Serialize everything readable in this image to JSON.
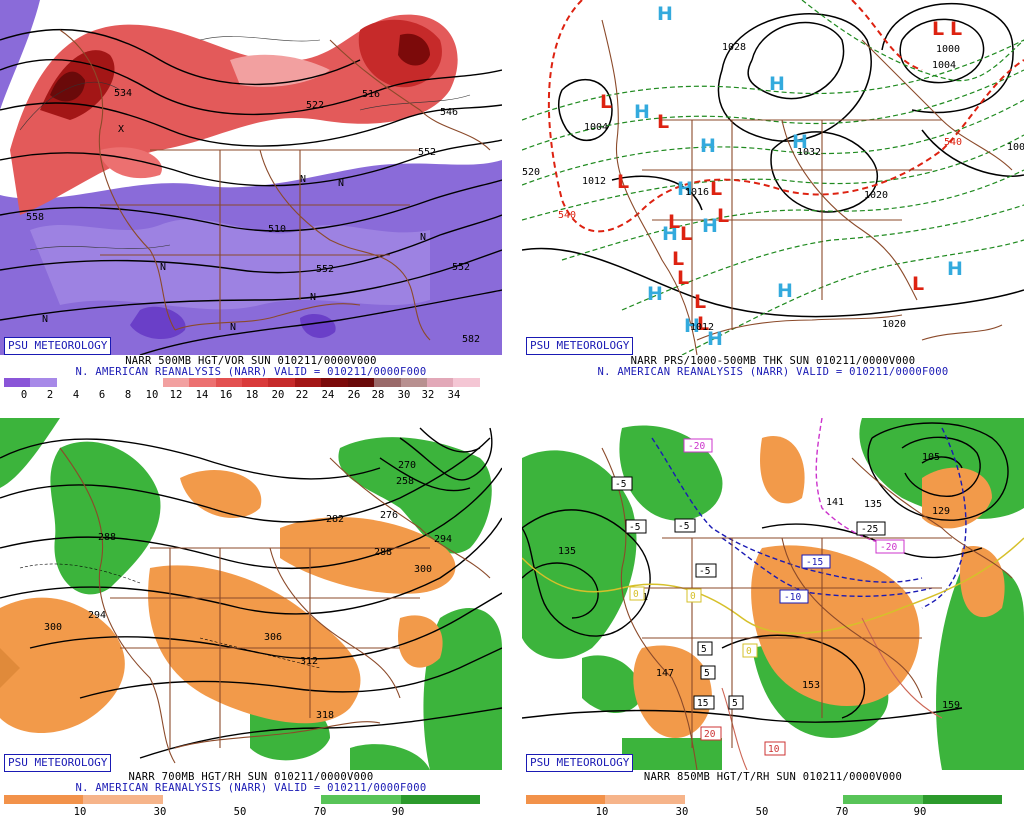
{
  "brand": "PSU METEOROLOGY",
  "colors": {
    "vort_fill_purple": "#8a6bd9",
    "vort_fill_red": "#d9363e",
    "rh_dry": "#f29a4a",
    "rh_moist": "#3cb43c",
    "high": "#33aadd",
    "low": "#dd2211",
    "title_blue": "#1a1ab4"
  },
  "panels": [
    {
      "id": "vorticity",
      "title_line1": "NARR 500MB HGT/VOR SUN 010211/0000V000",
      "title_line2": "N. AMERICAN REANALYSIS (NARR) VALID = 010211/0000F000",
      "colorbar_labels": [
        "0",
        "2",
        "4",
        "6",
        "8",
        "10",
        "12",
        "14",
        "16",
        "18",
        "20",
        "22",
        "24",
        "26",
        "28",
        "30",
        "32",
        "34"
      ],
      "colorbar_colors": [
        "#8a55d8",
        "#a789e8",
        "#ffffff",
        "#ffffff",
        "#ffffff",
        "#ffffff",
        "#f2a0a0",
        "#ec7070",
        "#e35050",
        "#d93a3a",
        "#c62a2a",
        "#a31616",
        "#7c0a0a",
        "#6a0a0a",
        "#9a6a6a",
        "#b89090",
        "#e2a8b8",
        "#f4c6d4"
      ],
      "contour_labels": [
        "534",
        "522",
        "516",
        "546",
        "558",
        "510",
        "552",
        "552",
        "582",
        "552"
      ]
    },
    {
      "id": "thickness",
      "title_line1": "NARR PRS/1000-500MB THK SUN 010211/0000V000",
      "title_line2": "N. AMERICAN REANALYSIS (NARR) VALID = 010211/0000F000",
      "contour_labels": [
        "1028",
        "1004",
        "1012",
        "1016",
        "1020",
        "1020",
        "1032",
        "540",
        "540",
        "520",
        "1008",
        "1012",
        "1000"
      ],
      "highs": [
        "H",
        "H",
        "H",
        "H",
        "H",
        "H",
        "H",
        "H",
        "H",
        "H",
        "H",
        "H",
        "H"
      ],
      "lows": [
        "L",
        "L",
        "L",
        "L",
        "L",
        "L",
        "L",
        "L",
        "L",
        "L",
        "L",
        "L",
        "L",
        "L"
      ]
    },
    {
      "id": "rh700",
      "title_line1": "NARR 700MB HGT/RH SUN 010211/0000V000",
      "title_line2": "N. AMERICAN REANALYSIS (NARR) VALID = 010211/0000F000",
      "colorbar_labels": [
        "10",
        "30",
        "50",
        "70",
        "90"
      ],
      "contour_labels": [
        "288",
        "294",
        "300",
        "306",
        "312",
        "318",
        "282",
        "276",
        "288",
        "294",
        "300",
        "270",
        "258"
      ]
    },
    {
      "id": "temp850",
      "title_line1": "NARR 850MB HGT/T/RH SUN 010211/0000V000",
      "colorbar_labels": [
        "10",
        "30",
        "50",
        "70",
        "90"
      ],
      "contour_labels": [
        "135",
        "141",
        "147",
        "153",
        "159",
        "141",
        "135",
        "105",
        "129"
      ],
      "temp_labels": [
        "-20",
        "-5",
        "-5",
        "-5",
        "-5",
        "-15",
        "-10",
        "-25",
        "-20",
        "0",
        "0",
        "0",
        "5",
        "5",
        "5",
        "10",
        "15",
        "20"
      ]
    }
  ]
}
